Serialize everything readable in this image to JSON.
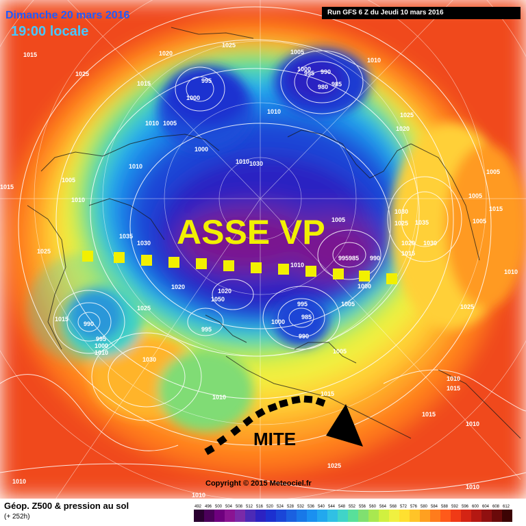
{
  "header": {
    "date": "Dimanche 20 mars 2016",
    "time": "19:00 locale",
    "run": "Run GFS 6 Z du Jeudi 10 mars 2016"
  },
  "annotations": {
    "vortex_axis": "ASSE VP",
    "high_pressure": "MITE"
  },
  "copyright": "Copyright © 2015 Meteociel.fr",
  "legend": {
    "title": "Géop. Z500 & pression au sol",
    "subtitle": "(+ 252h)",
    "scale_values": [
      "492",
      "496",
      "500",
      "504",
      "508",
      "512",
      "516",
      "520",
      "524",
      "528",
      "532",
      "536",
      "540",
      "544",
      "548",
      "552",
      "556",
      "560",
      "564",
      "568",
      "572",
      "576",
      "580",
      "584",
      "588",
      "592",
      "596",
      "600",
      "604",
      "608",
      "612"
    ],
    "scale_colors": [
      "#2a0030",
      "#4b005a",
      "#6e007e",
      "#8a1492",
      "#7a2aa8",
      "#4c2ab6",
      "#2c22c2",
      "#1c30d0",
      "#1a46d8",
      "#1a60e0",
      "#1878e8",
      "#1a90f0",
      "#22a8ee",
      "#30c0e4",
      "#40d4c8",
      "#58e09a",
      "#80e070",
      "#a8e850",
      "#d0f040",
      "#f0f040",
      "#ffe030",
      "#ffc428",
      "#ffa020",
      "#ff7c1c",
      "#ff5a1a",
      "#f03a16",
      "#d42414",
      "#b41812",
      "#901010",
      "#6a0a0a",
      "#3c0404"
    ]
  },
  "isobars": [
    {
      "label": "1015",
      "pos": [
        34,
        75
      ]
    },
    {
      "label": "1025",
      "pos": [
        110,
        103
      ]
    },
    {
      "label": "1020",
      "pos": [
        232,
        73
      ]
    },
    {
      "label": "1025",
      "pos": [
        324,
        61
      ]
    },
    {
      "label": "1005",
      "pos": [
        424,
        71
      ]
    },
    {
      "label": "1010",
      "pos": [
        536,
        83
      ]
    },
    {
      "label": "1000",
      "pos": [
        434,
        96
      ]
    },
    {
      "label": "995",
      "pos": [
        444,
        102
      ]
    },
    {
      "label": "990",
      "pos": [
        468,
        100
      ]
    },
    {
      "label": "980",
      "pos": [
        464,
        122
      ]
    },
    {
      "label": "985",
      "pos": [
        484,
        118
      ]
    },
    {
      "label": "995",
      "pos": [
        294,
        113
      ]
    },
    {
      "label": "1000",
      "pos": [
        272,
        138
      ]
    },
    {
      "label": "1015",
      "pos": [
        200,
        117
      ]
    },
    {
      "label": "1010",
      "pos": [
        212,
        175
      ]
    },
    {
      "label": "1005",
      "pos": [
        238,
        175
      ]
    },
    {
      "label": "1010",
      "pos": [
        390,
        158
      ]
    },
    {
      "label": "1025",
      "pos": [
        584,
        163
      ]
    },
    {
      "label": "1020",
      "pos": [
        578,
        183
      ]
    },
    {
      "label": "1000",
      "pos": [
        284,
        213
      ]
    },
    {
      "label": "1010",
      "pos": [
        188,
        238
      ]
    },
    {
      "label": "1030",
      "pos": [
        364,
        234
      ]
    },
    {
      "label": "1010",
      "pos": [
        344,
        231
      ]
    },
    {
      "label": "1005",
      "pos": [
        90,
        258
      ]
    },
    {
      "label": "1005",
      "pos": [
        710,
        246
      ]
    },
    {
      "label": "1015",
      "pos": [
        0,
        268
      ]
    },
    {
      "label": "1005",
      "pos": [
        684,
        281
      ]
    },
    {
      "label": "1010",
      "pos": [
        104,
        287
      ]
    },
    {
      "label": "1015",
      "pos": [
        714,
        300
      ]
    },
    {
      "label": "1030",
      "pos": [
        576,
        304
      ]
    },
    {
      "label": "1035",
      "pos": [
        606,
        320
      ]
    },
    {
      "label": "1025",
      "pos": [
        576,
        321
      ]
    },
    {
      "label": "1005",
      "pos": [
        484,
        316
      ]
    },
    {
      "label": "1005",
      "pos": [
        690,
        318
      ]
    },
    {
      "label": "1035",
      "pos": [
        174,
        340
      ]
    },
    {
      "label": "1030",
      "pos": [
        200,
        350
      ]
    },
    {
      "label": "1020",
      "pos": [
        586,
        350
      ]
    },
    {
      "label": "1030",
      "pos": [
        618,
        350
      ]
    },
    {
      "label": "1025",
      "pos": [
        54,
        362
      ]
    },
    {
      "label": "1015",
      "pos": [
        586,
        365
      ]
    },
    {
      "label": "995985",
      "pos": [
        494,
        372
      ]
    },
    {
      "label": "990",
      "pos": [
        540,
        372
      ]
    },
    {
      "label": "1010",
      "pos": [
        424,
        382
      ]
    },
    {
      "label": "1010",
      "pos": [
        736,
        392
      ]
    },
    {
      "label": "1020",
      "pos": [
        250,
        414
      ]
    },
    {
      "label": "1020",
      "pos": [
        318,
        420
      ]
    },
    {
      "label": "1000",
      "pos": [
        522,
        413
      ]
    },
    {
      "label": "1050",
      "pos": [
        308,
        432
      ]
    },
    {
      "label": "995",
      "pos": [
        434,
        439
      ]
    },
    {
      "label": "1005",
      "pos": [
        498,
        439
      ]
    },
    {
      "label": "1025",
      "pos": [
        200,
        445
      ]
    },
    {
      "label": "1025",
      "pos": [
        672,
        443
      ]
    },
    {
      "label": "985",
      "pos": [
        440,
        458
      ]
    },
    {
      "label": "1000",
      "pos": [
        396,
        465
      ]
    },
    {
      "label": "1015",
      "pos": [
        80,
        461
      ]
    },
    {
      "label": "990",
      "pos": [
        122,
        468
      ]
    },
    {
      "label": "995",
      "pos": [
        294,
        476
      ]
    },
    {
      "label": "990",
      "pos": [
        436,
        486
      ]
    },
    {
      "label": "995",
      "pos": [
        140,
        490
      ]
    },
    {
      "label": "1000",
      "pos": [
        138,
        500
      ]
    },
    {
      "label": "1005",
      "pos": [
        486,
        508
      ]
    },
    {
      "label": "1010",
      "pos": [
        138,
        510
      ]
    },
    {
      "label": "1030",
      "pos": [
        208,
        520
      ]
    },
    {
      "label": "1010",
      "pos": [
        652,
        548
      ]
    },
    {
      "label": "1015",
      "pos": [
        652,
        562
      ]
    },
    {
      "label": "1010",
      "pos": [
        310,
        575
      ]
    },
    {
      "label": "1015",
      "pos": [
        468,
        570
      ]
    },
    {
      "label": "1015",
      "pos": [
        616,
        600
      ]
    },
    {
      "label": "1010",
      "pos": [
        680,
        614
      ]
    },
    {
      "label": "1025",
      "pos": [
        478,
        675
      ]
    },
    {
      "label": "1010",
      "pos": [
        18,
        698
      ]
    },
    {
      "label": "1010",
      "pos": [
        680,
        706
      ]
    },
    {
      "label": "1010",
      "pos": [
        280,
        718
      ]
    }
  ]
}
